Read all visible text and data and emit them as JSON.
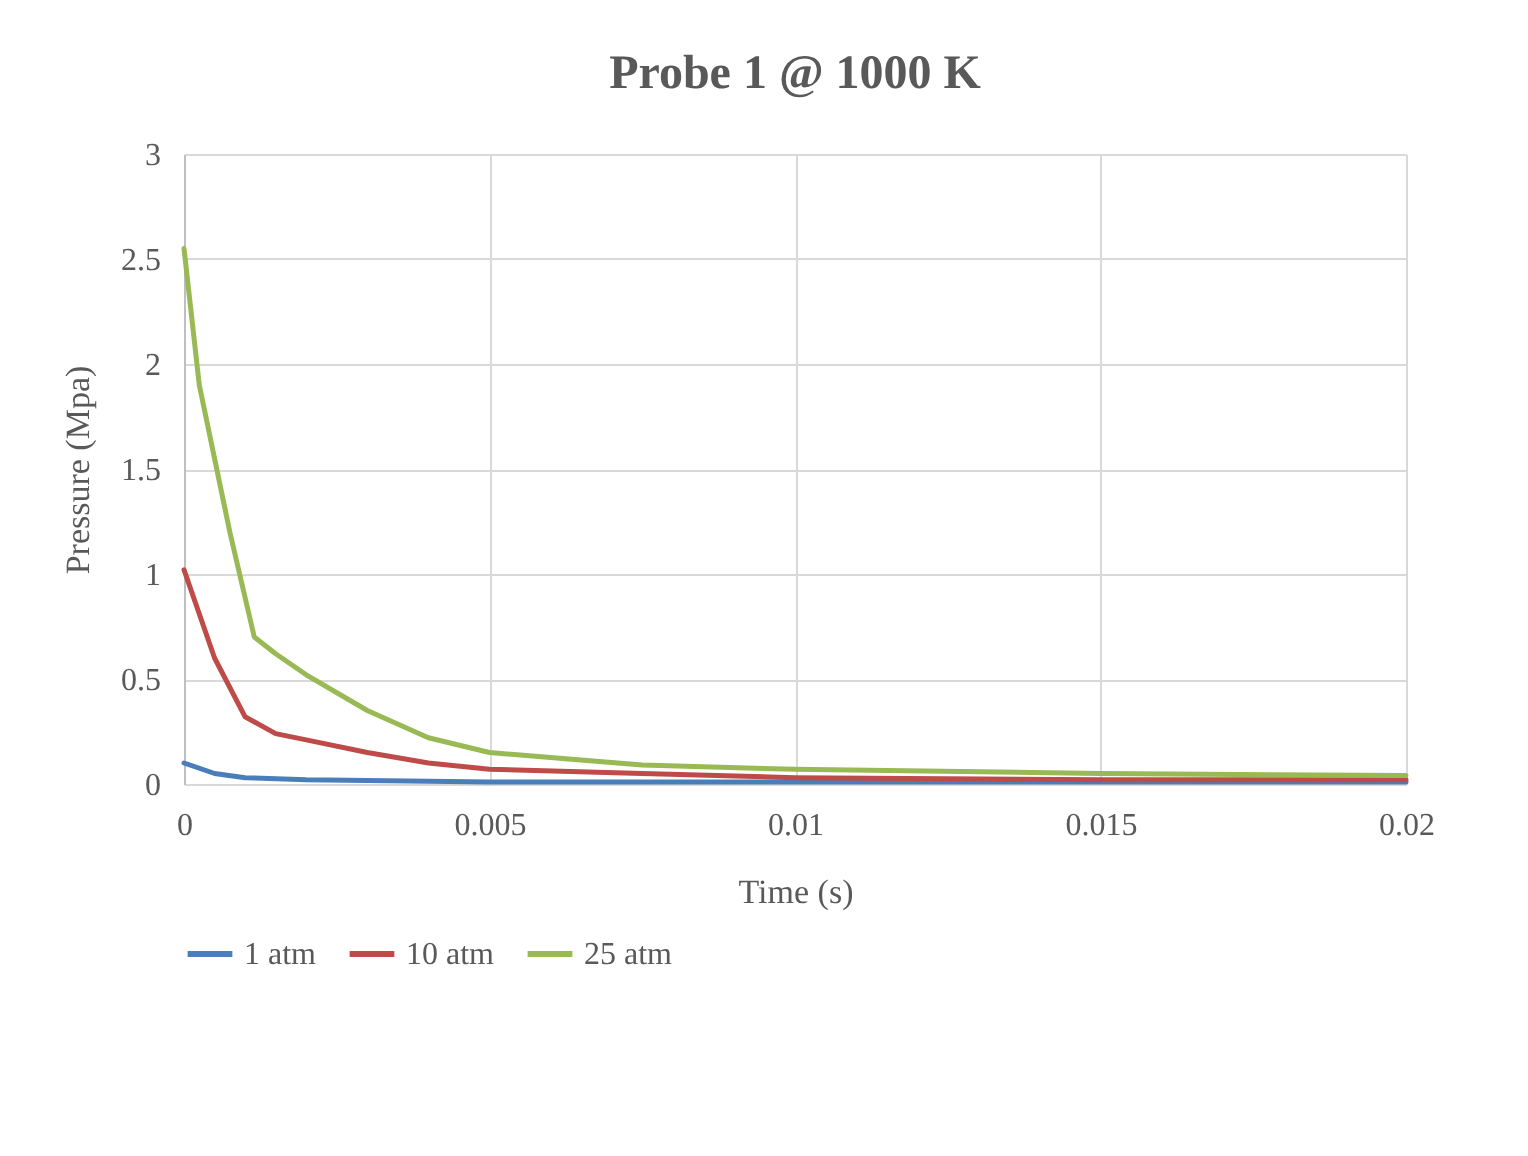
{
  "chart_data": {
    "type": "line",
    "title": "Probe 1 @ 1000 K",
    "xlabel": "Time (s)",
    "ylabel": "Pressure (Mpa)",
    "xlim": [
      0,
      0.02
    ],
    "xticks": [
      0,
      0.005,
      0.01,
      0.015,
      0.02
    ],
    "ylim": [
      0,
      3
    ],
    "yticks": [
      0,
      0.5,
      1,
      1.5,
      2,
      2.5,
      3
    ],
    "grid": true,
    "legend": "bottom",
    "marker": "none",
    "line_style": "solid",
    "series": [
      {
        "name": "1 atm",
        "color": "#4a7ebb",
        "x": [
          0,
          0.0005,
          0.001,
          0.002,
          0.005,
          0.01,
          0.02
        ],
        "values": [
          0.1,
          0.05,
          0.03,
          0.02,
          0.01,
          0.01,
          0.01
        ]
      },
      {
        "name": "10 atm",
        "color": "#be4b48",
        "x": [
          0,
          0.0005,
          0.001,
          0.0015,
          0.002,
          0.003,
          0.004,
          0.005,
          0.0075,
          0.01,
          0.015,
          0.02
        ],
        "values": [
          1.02,
          0.6,
          0.32,
          0.24,
          0.21,
          0.15,
          0.1,
          0.07,
          0.05,
          0.03,
          0.02,
          0.02
        ]
      },
      {
        "name": "25 atm",
        "color": "#98b954",
        "x": [
          0,
          0.00025,
          0.00075,
          0.00115,
          0.0015,
          0.002,
          0.003,
          0.004,
          0.005,
          0.0075,
          0.01,
          0.015,
          0.02
        ],
        "values": [
          2.55,
          1.9,
          1.2,
          0.7,
          0.62,
          0.52,
          0.35,
          0.22,
          0.15,
          0.09,
          0.07,
          0.05,
          0.04
        ]
      }
    ]
  }
}
